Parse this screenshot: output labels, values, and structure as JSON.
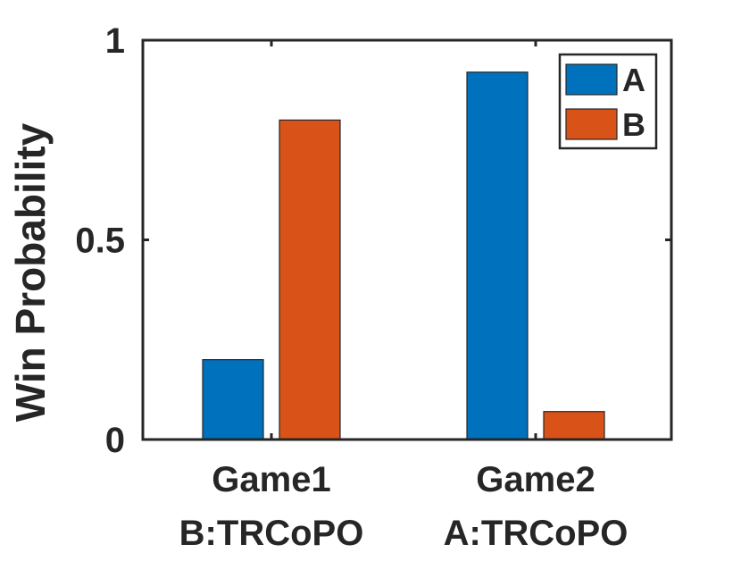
{
  "chart_data": {
    "type": "bar",
    "categories": [
      "Game1",
      "Game2"
    ],
    "category_sublabels": [
      "B:TRCoPO",
      "A:TRCoPO"
    ],
    "series": [
      {
        "name": "A",
        "values": [
          0.2,
          0.92
        ],
        "color": "#0072BD"
      },
      {
        "name": "B",
        "values": [
          0.8,
          0.07
        ],
        "color": "#D95319"
      }
    ],
    "title": "",
    "xlabel": "",
    "ylabel": "Win Probability",
    "ylim": [
      0,
      1
    ],
    "yticks": [
      0,
      0.5,
      1
    ],
    "ytick_labels": [
      "0",
      "0.5",
      "1"
    ],
    "grid": false,
    "legend_position": "top-right"
  }
}
